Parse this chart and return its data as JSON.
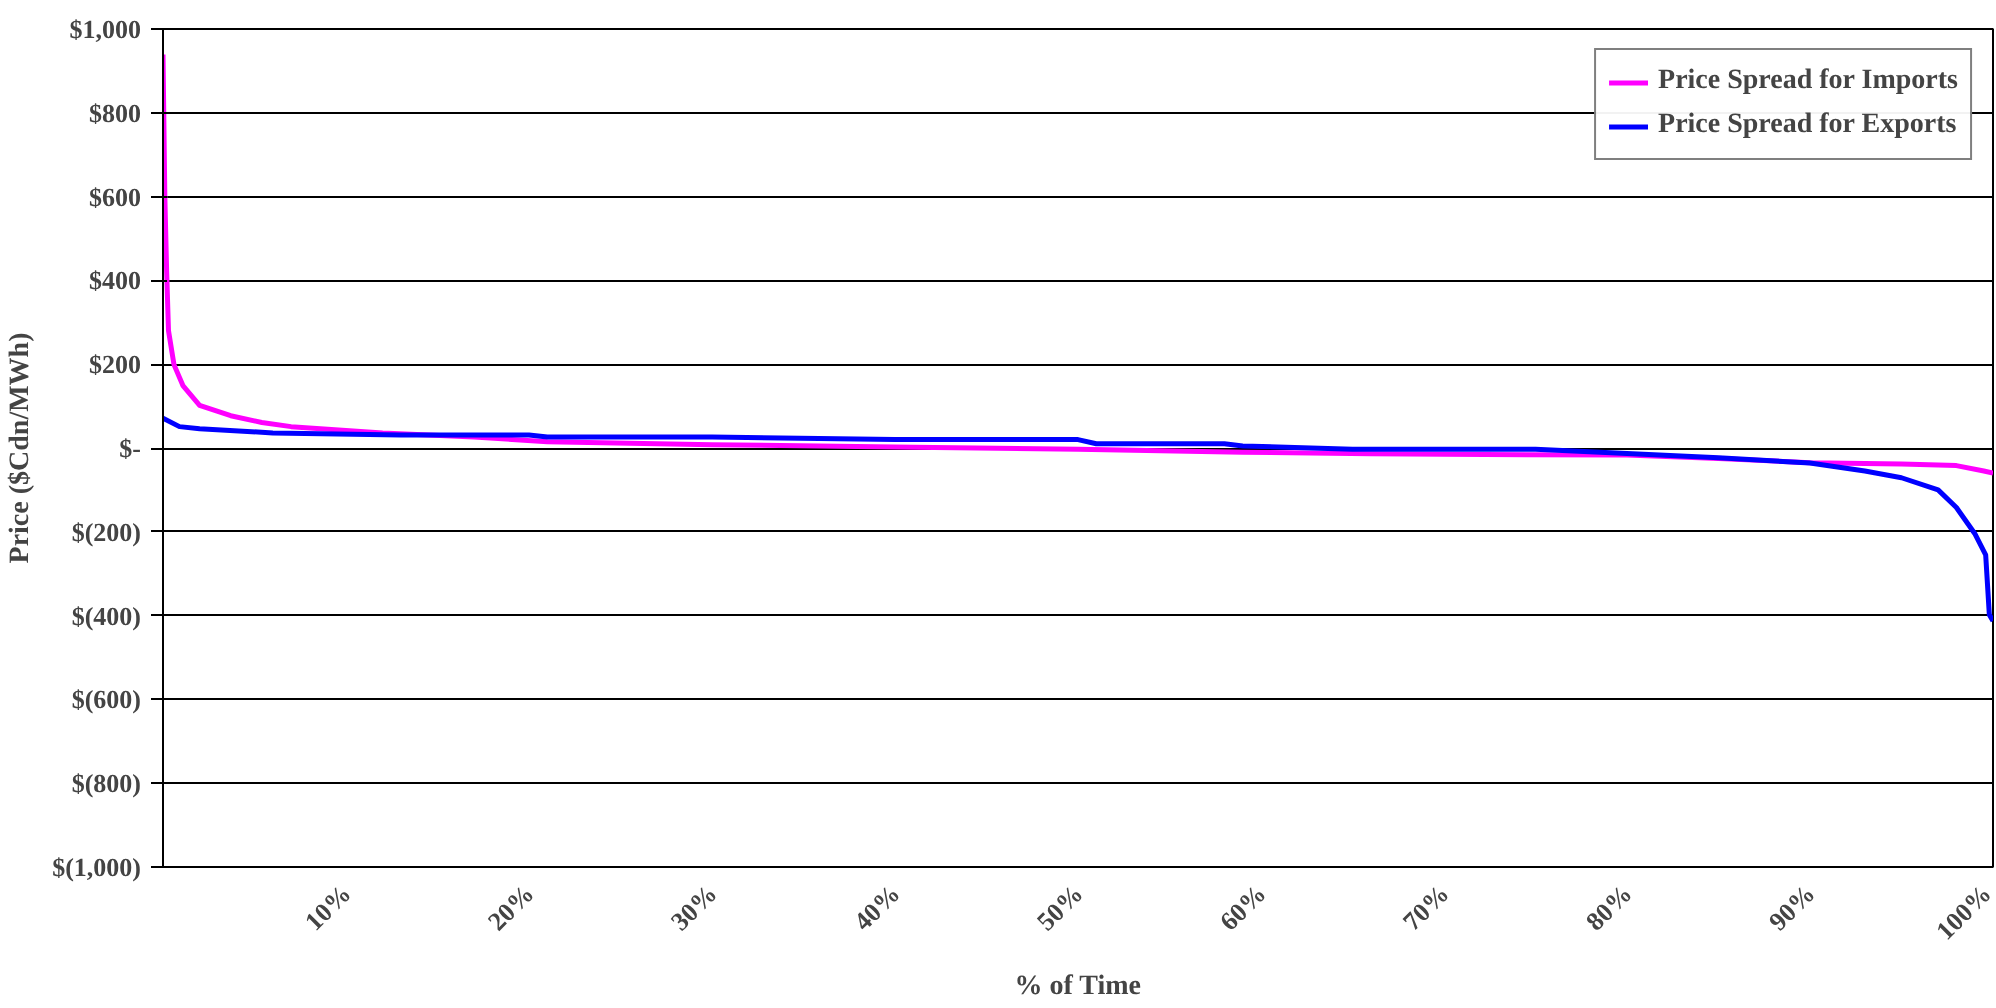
{
  "chart_data": {
    "type": "line",
    "xlabel": "% of Time",
    "ylabel": "Price ($Cdn/MWh)",
    "xlim": [
      0,
      100
    ],
    "ylim": [
      -1000,
      1000
    ],
    "xticks": [
      {
        "value": 10,
        "label": "10%"
      },
      {
        "value": 20,
        "label": "20%"
      },
      {
        "value": 30,
        "label": "30%"
      },
      {
        "value": 40,
        "label": "40%"
      },
      {
        "value": 50,
        "label": "50%"
      },
      {
        "value": 60,
        "label": "60%"
      },
      {
        "value": 70,
        "label": "70%"
      },
      {
        "value": 80,
        "label": "80%"
      },
      {
        "value": 90,
        "label": "90%"
      },
      {
        "value": 100,
        "label": "100%"
      }
    ],
    "yticks": [
      {
        "value": 1000,
        "label": "$1,000"
      },
      {
        "value": 800,
        "label": "$800"
      },
      {
        "value": 600,
        "label": "$600"
      },
      {
        "value": 400,
        "label": "$400"
      },
      {
        "value": 200,
        "label": "$200"
      },
      {
        "value": 0,
        "label": "$-"
      },
      {
        "value": -200,
        "label": "$(200)"
      },
      {
        "value": -400,
        "label": "$(400)"
      },
      {
        "value": -600,
        "label": "$(600)"
      },
      {
        "value": -800,
        "label": "$(800)"
      },
      {
        "value": -1000,
        "label": "$(1,000)"
      }
    ],
    "grid": "y",
    "legend": "top right",
    "marker": "none",
    "line_style": "solid",
    "series": [
      {
        "name": "Price Spread for Imports",
        "color": "#ff00ff",
        "x": [
          0,
          0.1,
          0.2,
          0.3,
          0.6,
          1.1,
          2,
          3.7,
          5.4,
          7,
          12,
          17,
          21,
          30,
          41,
          50,
          59,
          66,
          70,
          80,
          85,
          90,
          95,
          98,
          99.5,
          100
        ],
        "values": [
          939,
          600,
          420,
          280,
          199,
          148,
          102,
          77,
          61,
          51,
          36,
          26,
          15,
          8,
          2,
          -3,
          -10,
          -14,
          -15,
          -17,
          -25,
          -35,
          -38,
          -42,
          -55,
          -60
        ]
      },
      {
        "name": "Price Spread for Exports",
        "color": "#0000ff",
        "x": [
          0,
          0.9,
          2,
          6,
          13,
          20,
          21,
          30,
          40,
          50,
          51,
          58,
          59,
          65,
          75,
          80,
          85,
          90,
          93,
          95,
          97,
          98,
          99,
          99.6,
          99.8,
          100
        ],
        "values": [
          71,
          51,
          46,
          36,
          31,
          31,
          26,
          26,
          20,
          20,
          10,
          10,
          5,
          -3,
          -3,
          -13,
          -23,
          -36,
          -55,
          -71,
          -100,
          -142,
          -204,
          -255,
          -398,
          -413
        ]
      }
    ]
  }
}
